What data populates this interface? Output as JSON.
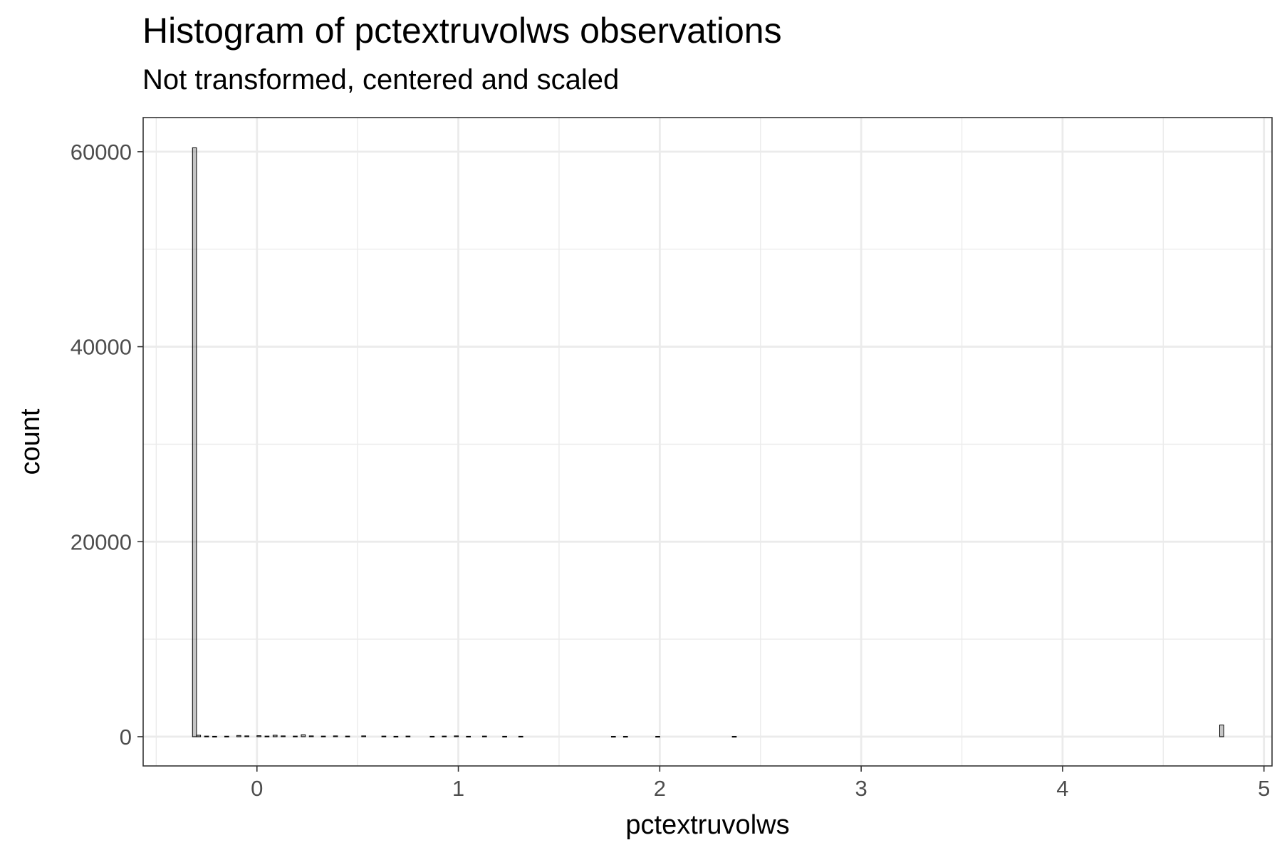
{
  "chart_data": {
    "type": "bar",
    "title": "Histogram of pctextruvolws observations",
    "subtitle": "Not transformed, centered and scaled",
    "xlabel": "pctextruvolws",
    "ylabel": "count",
    "xlim": [
      -0.565,
      5.04
    ],
    "ylim": [
      -3000,
      63500
    ],
    "x_ticks": [
      0,
      1,
      2,
      3,
      4,
      5
    ],
    "y_ticks": [
      0,
      20000,
      40000,
      60000
    ],
    "x_tick_labels": [
      "0",
      "1",
      "2",
      "3",
      "4",
      "5"
    ],
    "y_tick_labels": [
      "0",
      "20000",
      "40000",
      "60000"
    ],
    "grid": true,
    "bin_width": 0.02,
    "bins": [
      {
        "x": -0.31,
        "count": 60400
      },
      {
        "x": -0.29,
        "count": 150
      },
      {
        "x": -0.25,
        "count": 60
      },
      {
        "x": -0.21,
        "count": 40
      },
      {
        "x": -0.15,
        "count": 50
      },
      {
        "x": -0.09,
        "count": 120
      },
      {
        "x": -0.05,
        "count": 80
      },
      {
        "x": 0.01,
        "count": 100
      },
      {
        "x": 0.05,
        "count": 60
      },
      {
        "x": 0.09,
        "count": 150
      },
      {
        "x": 0.13,
        "count": 80
      },
      {
        "x": 0.19,
        "count": 60
      },
      {
        "x": 0.23,
        "count": 200
      },
      {
        "x": 0.27,
        "count": 80
      },
      {
        "x": 0.33,
        "count": 60
      },
      {
        "x": 0.39,
        "count": 80
      },
      {
        "x": 0.45,
        "count": 60
      },
      {
        "x": 0.53,
        "count": 80
      },
      {
        "x": 0.63,
        "count": 60
      },
      {
        "x": 0.69,
        "count": 40
      },
      {
        "x": 0.75,
        "count": 60
      },
      {
        "x": 0.87,
        "count": 40
      },
      {
        "x": 0.93,
        "count": 60
      },
      {
        "x": 0.99,
        "count": 80
      },
      {
        "x": 1.05,
        "count": 40
      },
      {
        "x": 1.13,
        "count": 60
      },
      {
        "x": 1.23,
        "count": 40
      },
      {
        "x": 1.31,
        "count": 40
      },
      {
        "x": 1.77,
        "count": 30
      },
      {
        "x": 1.83,
        "count": 30
      },
      {
        "x": 1.99,
        "count": 30
      },
      {
        "x": 2.37,
        "count": 30
      },
      {
        "x": 4.79,
        "count": 1200
      }
    ]
  }
}
